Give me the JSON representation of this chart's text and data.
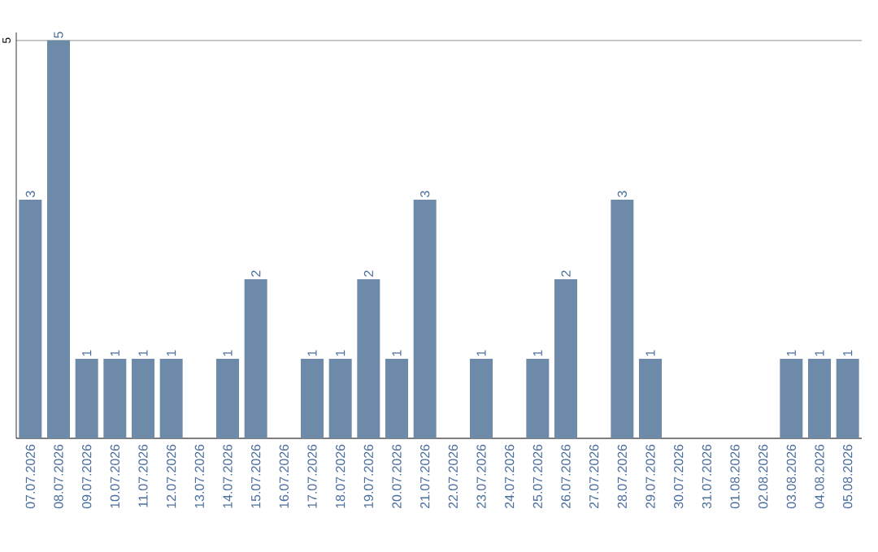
{
  "chart_data": {
    "type": "bar",
    "categories": [
      "07.07.2026",
      "08.07.2026",
      "09.07.2026",
      "10.07.2026",
      "11.07.2026",
      "12.07.2026",
      "13.07.2026",
      "14.07.2026",
      "15.07.2026",
      "16.07.2026",
      "17.07.2026",
      "18.07.2026",
      "19.07.2026",
      "20.07.2026",
      "21.07.2026",
      "22.07.2026",
      "23.07.2026",
      "24.07.2026",
      "25.07.2026",
      "26.07.2026",
      "27.07.2026",
      "28.07.2026",
      "29.07.2026",
      "30.07.2026",
      "31.07.2026",
      "01.08.2026",
      "02.08.2026",
      "03.08.2026",
      "04.08.2026",
      "05.08.2026"
    ],
    "values": [
      3,
      5,
      1,
      1,
      1,
      1,
      0,
      1,
      2,
      0,
      1,
      1,
      2,
      1,
      3,
      0,
      1,
      0,
      1,
      2,
      0,
      3,
      1,
      0,
      0,
      0,
      0,
      1,
      1,
      1
    ],
    "value_labels": [
      "3",
      "5",
      "1",
      "1",
      "1",
      "1",
      null,
      "1",
      "2",
      null,
      "1",
      "1",
      "2",
      "1",
      "3",
      null,
      "1",
      null,
      "1",
      "2",
      null,
      "3",
      "1",
      null,
      null,
      null,
      null,
      "1",
      "1",
      "1"
    ],
    "color": "#6d8aa8",
    "ylim": [
      0,
      5
    ],
    "yticks": [
      {
        "value": 0,
        "label": null
      },
      5
    ],
    "grid": "y"
  }
}
